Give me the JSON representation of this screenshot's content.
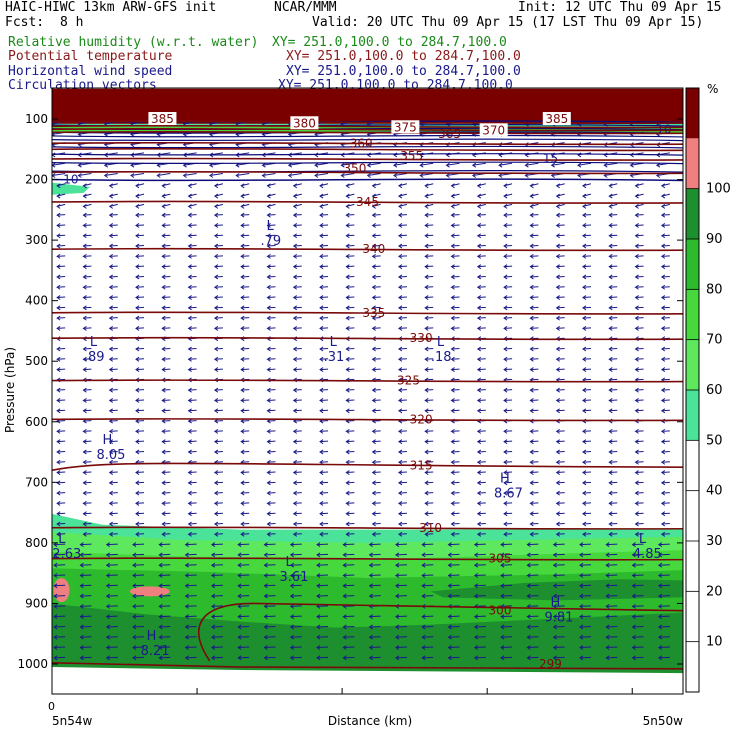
{
  "header": {
    "model": "HAIC-HIWC 13km ARW-GFS init",
    "center": "NCAR/MMM",
    "init": "Init: 12 UTC Thu 09 Apr 15",
    "fcst_label": "Fcst:",
    "fcst_value": "8 h",
    "valid": "Valid: 20 UTC Thu 09 Apr 15 (17 LST Thu 09 Apr 15)"
  },
  "fields": [
    {
      "name": "Relative humidity (w.r.t. water)",
      "xy": "XY= 251.0,100.0 to 284.7,100.0",
      "color": "#1a8a1a"
    },
    {
      "name": "Potential temperature",
      "xy": "XY= 251.0,100.0 to 284.7,100.0",
      "color": "#8a1a1a"
    },
    {
      "name": "Horizontal wind speed",
      "xy": "XY= 251.0,100.0 to 284.7,100.0",
      "color": "#1a1a8a"
    },
    {
      "name": "Circulation vectors",
      "xy": "XY= 251.0,100.0 to 284.7,100.0",
      "color": "#1a1a8a"
    }
  ],
  "chart_data": {
    "type": "heatmap",
    "title": "",
    "xlabel": "Distance (km)",
    "ylabel": "Pressure (hPa)",
    "x_origin_label": "0",
    "x_left_label": "5n54w",
    "x_right_label": "5n50w",
    "yticks": [
      100,
      200,
      300,
      400,
      500,
      600,
      700,
      800,
      900,
      1000
    ],
    "ylim": [
      1050,
      50
    ],
    "colorbar": {
      "unit": "%",
      "ticks": [
        10,
        20,
        30,
        40,
        50,
        60,
        70,
        80,
        90,
        100
      ],
      "bands": [
        {
          "from": 50,
          "to": 60,
          "color": "#4be39a"
        },
        {
          "from": 60,
          "to": 70,
          "color": "#5ee85e"
        },
        {
          "from": 70,
          "to": 80,
          "color": "#46d83c"
        },
        {
          "from": 80,
          "to": 90,
          "color": "#2dba2d"
        },
        {
          "from": 90,
          "to": 100,
          "color": "#1e8f2e"
        },
        {
          "from": 100,
          "to": 110,
          "color": "#f08080"
        },
        {
          "from": 110,
          "to": 120,
          "color": "#7a0000"
        }
      ]
    },
    "theta_contours": [
      {
        "label": "385",
        "p": 105
      },
      {
        "label": "380",
        "p": 112
      },
      {
        "label": "375",
        "p": 117
      },
      {
        "label": "370",
        "p": 122
      },
      {
        "label": "365",
        "p": 140
      },
      {
        "label": "360",
        "p": 150
      },
      {
        "label": "355",
        "p": 166
      },
      {
        "label": "350",
        "p": 188
      },
      {
        "label": "345",
        "p": 237
      },
      {
        "label": "340",
        "p": 315
      },
      {
        "label": "335",
        "p": 420
      },
      {
        "label": "330",
        "p": 462
      },
      {
        "label": "325",
        "p": 532
      },
      {
        "label": "320",
        "p": 596
      },
      {
        "label": "315",
        "p": 672
      },
      {
        "label": "310",
        "p": 775
      },
      {
        "label": "305",
        "p": 826
      },
      {
        "label": "300",
        "p": 912
      },
      {
        "label": "299",
        "p": 1000
      }
    ],
    "wind_labels": [
      {
        "label": "10",
        "p": 200
      },
      {
        "label": "10",
        "p": 117
      },
      {
        "label": "15",
        "p": 165
      }
    ],
    "extrema": [
      {
        "sym": "L",
        "value": ".79",
        "x": 0.34,
        "p": 283
      },
      {
        "sym": "L",
        "value": ".89",
        "x": 0.06,
        "p": 475
      },
      {
        "sym": "L",
        "value": ".31",
        "x": 0.44,
        "p": 475
      },
      {
        "sym": "L",
        "value": ".18",
        "x": 0.61,
        "p": 475
      },
      {
        "sym": "H",
        "value": "8.05",
        "x": 0.08,
        "p": 637
      },
      {
        "sym": "H",
        "value": "8.67",
        "x": 0.71,
        "p": 700
      },
      {
        "sym": "L",
        "value": "2.63",
        "x": 0.01,
        "p": 800
      },
      {
        "sym": "L",
        "value": "4.85",
        "x": 0.93,
        "p": 800
      },
      {
        "sym": "L",
        "value": "3.61",
        "x": 0.37,
        "p": 838
      },
      {
        "sym": "H",
        "value": "9.81",
        "x": 0.79,
        "p": 905
      },
      {
        "sym": "H",
        "value": "8.21",
        "x": 0.15,
        "p": 960
      }
    ]
  }
}
